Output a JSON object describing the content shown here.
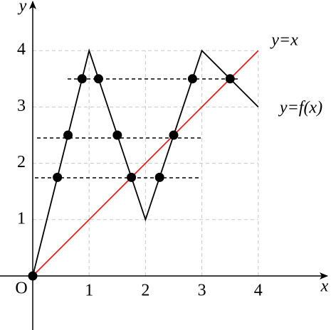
{
  "axes": {
    "x_label": "x",
    "y_label": "y",
    "origin_label": "O",
    "xticks": [
      1,
      2,
      3,
      4
    ],
    "yticks": [
      1,
      2,
      3,
      4
    ]
  },
  "curves": [
    {
      "label": "y=x",
      "color": "#e0201b",
      "x": [
        0,
        4
      ],
      "y": [
        0,
        4
      ]
    },
    {
      "label": "y=f(x)",
      "color": "#000000",
      "x": [
        0,
        1,
        2,
        3,
        4
      ],
      "y": [
        0,
        4,
        1,
        4,
        3
      ]
    }
  ],
  "points": {
    "x": [
      0,
      0.875,
      1.1667,
      2.8333,
      3.5,
      0.625,
      1.5,
      2.5,
      0.4375,
      1.75,
      2.25
    ],
    "y": [
      0,
      3.5,
      3.5,
      3.5,
      3.5,
      2.5,
      2.5,
      2.5,
      1.75,
      1.75,
      1.75
    ]
  }
}
